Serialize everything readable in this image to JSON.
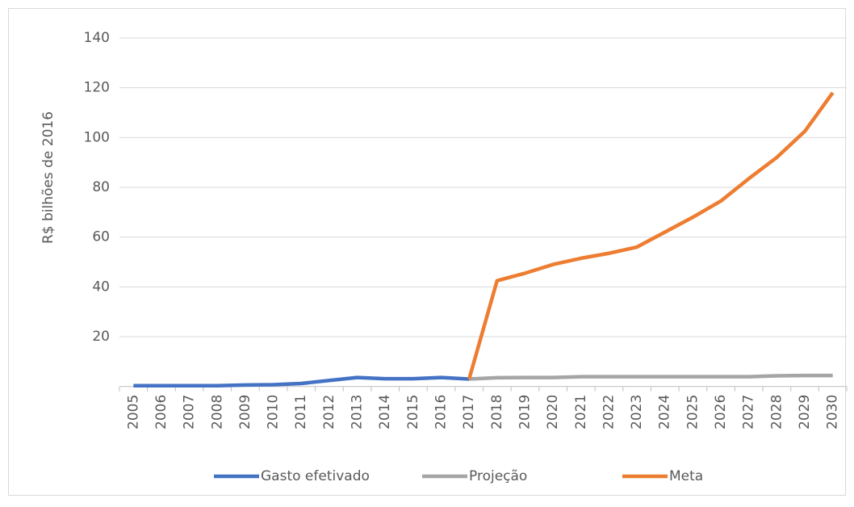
{
  "chart_data": {
    "type": "line",
    "y_label": "R$ bilhões de 2016",
    "categories": [
      "2005",
      "2006",
      "2007",
      "2008",
      "2009",
      "2010",
      "2011",
      "2012",
      "2013",
      "2014",
      "2015",
      "2016",
      "2017",
      "2018",
      "2019",
      "2020",
      "2021",
      "2022",
      "2023",
      "2024",
      "2025",
      "2026",
      "2027",
      "2028",
      "2029",
      "2030"
    ],
    "series": [
      {
        "name": "Gasto efetivado",
        "color": "#4472c4",
        "values": [
          0.3,
          0.3,
          0.3,
          0.3,
          0.6,
          0.7,
          1.2,
          2.4,
          3.6,
          3.1,
          3.1,
          3.6,
          3.0,
          null,
          null,
          null,
          null,
          null,
          null,
          null,
          null,
          null,
          null,
          null,
          null,
          null
        ]
      },
      {
        "name": "Projeção",
        "color": "#a5a5a5",
        "values": [
          null,
          null,
          null,
          null,
          null,
          null,
          null,
          null,
          null,
          null,
          null,
          null,
          3.0,
          3.5,
          3.6,
          3.6,
          3.9,
          3.9,
          3.9,
          3.9,
          3.9,
          3.9,
          3.9,
          4.3,
          4.4,
          4.4
        ]
      },
      {
        "name": "Meta",
        "color": "#ed7d31",
        "values": [
          null,
          null,
          null,
          null,
          null,
          null,
          null,
          null,
          null,
          null,
          null,
          null,
          3.0,
          42.5,
          45.5,
          49.0,
          51.5,
          53.5,
          56.0,
          62.0,
          68.0,
          74.5,
          83.5,
          92.0,
          102.5,
          118.0
        ]
      }
    ],
    "ylim": [
      0,
      140
    ],
    "yticks": [
      20,
      40,
      60,
      80,
      100,
      120,
      140
    ],
    "grid": true,
    "legend": "bottom"
  }
}
